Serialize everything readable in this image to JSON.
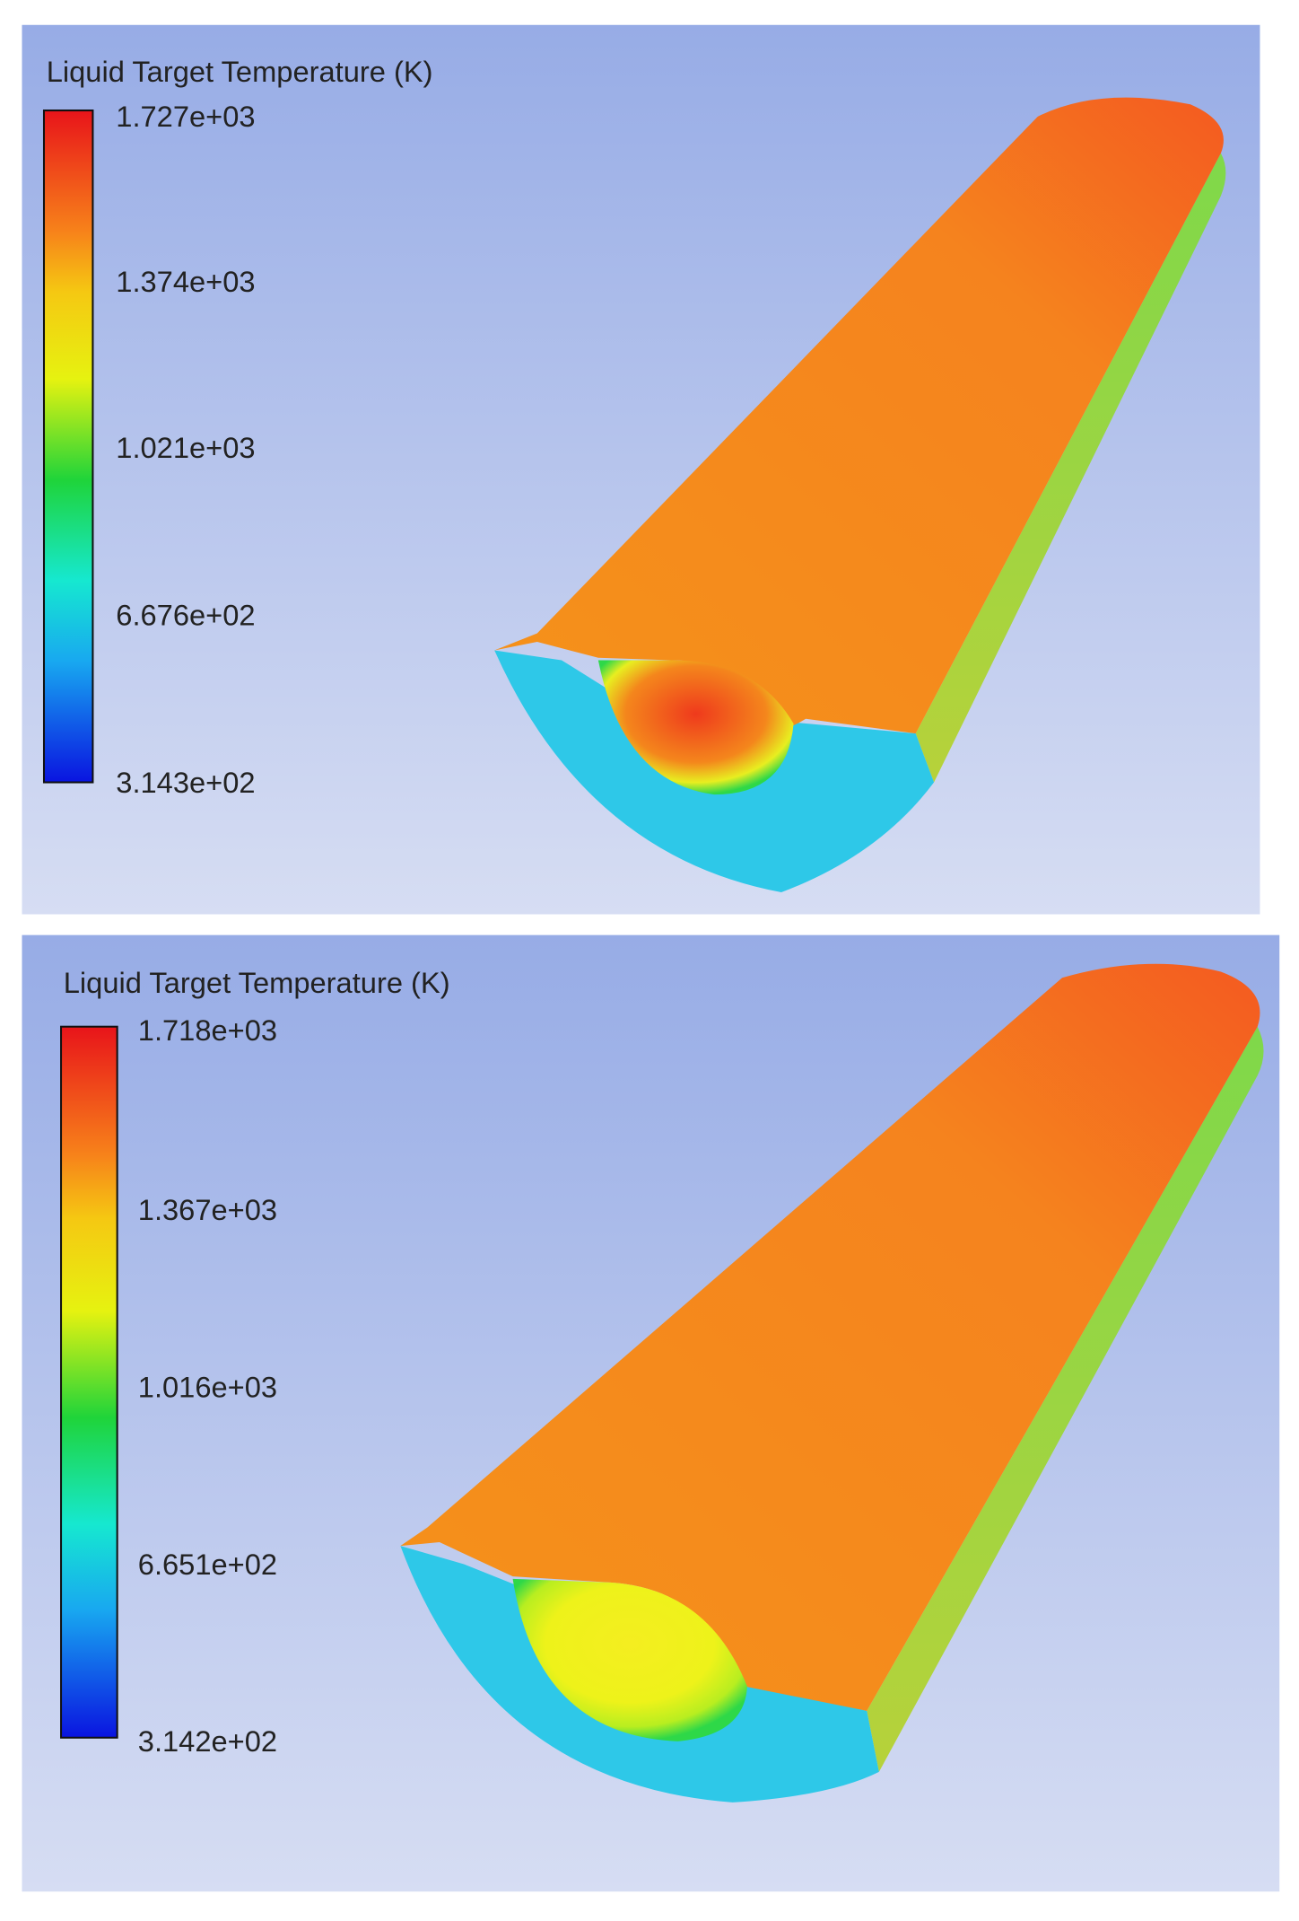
{
  "panels": [
    {
      "title": "Liquid Target Temperature (K)",
      "legend_labels": [
        "1.727e+03",
        "1.374e+03",
        "1.021e+03",
        "6.676e+02",
        "3.143e+02"
      ]
    },
    {
      "title": "Liquid Target Temperature (K)",
      "legend_labels": [
        "1.718e+03",
        "1.367e+03",
        "1.016e+03",
        "6.651e+02",
        "3.142e+02"
      ]
    }
  ]
}
